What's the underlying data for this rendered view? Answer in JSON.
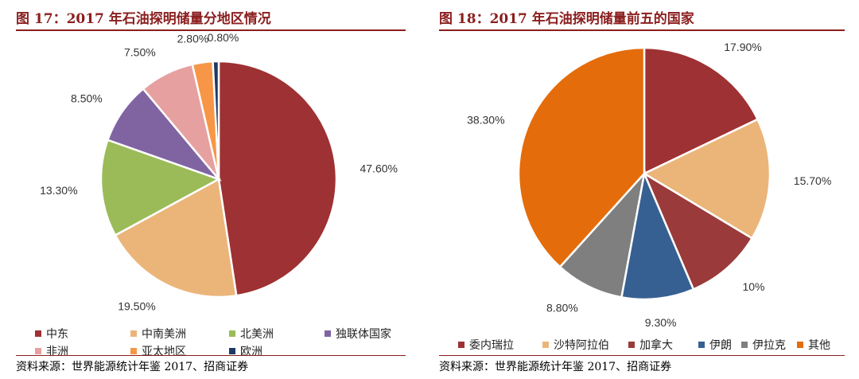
{
  "chart_data": [
    {
      "type": "pie",
      "title": "图 17：2017 年石油探明储量分地区情况",
      "source": "资料来源：世界能源统计年鉴 2017、招商证券",
      "legend_position": "bottom",
      "slices": [
        {
          "name": "中东",
          "value": 47.6,
          "label": "47.60%",
          "color": "#9e3133"
        },
        {
          "name": "中南美洲",
          "value": 19.5,
          "label": "19.50%",
          "color": "#ebb57a"
        },
        {
          "name": "北美洲",
          "value": 13.3,
          "label": "13.30%",
          "color": "#9bbb59"
        },
        {
          "name": "独联体国家",
          "value": 8.5,
          "label": "8.50%",
          "color": "#8064a2"
        },
        {
          "name": "非洲",
          "value": 7.5,
          "label": "7.50%",
          "color": "#e6a0a0"
        },
        {
          "name": "亚太地区",
          "value": 2.8,
          "label": "2.80%",
          "color": "#f79646"
        },
        {
          "name": "欧洲",
          "value": 0.8,
          "label": "0.80%",
          "color": "#1f3864"
        }
      ]
    },
    {
      "type": "pie",
      "title": "图 18：2017 年石油探明储量前五的国家",
      "source": "资料来源：世界能源统计年鉴 2017、招商证券",
      "legend_position": "bottom",
      "slices": [
        {
          "name": "委内瑞拉",
          "value": 17.9,
          "label": "17.90%",
          "color": "#9e3133"
        },
        {
          "name": "沙特阿拉伯",
          "value": 15.7,
          "label": "15.70%",
          "color": "#ebb57a"
        },
        {
          "name": "加拿大",
          "value": 10,
          "label": "10%",
          "color": "#9a3a3a"
        },
        {
          "name": "伊朗",
          "value": 9.3,
          "label": "9.30%",
          "color": "#376092"
        },
        {
          "name": "伊拉克",
          "value": 8.8,
          "label": "8.80%",
          "color": "#7f7f7f"
        },
        {
          "name": "其他",
          "value": 38.3,
          "label": "38.30%",
          "color": "#e46c0a"
        }
      ]
    }
  ]
}
